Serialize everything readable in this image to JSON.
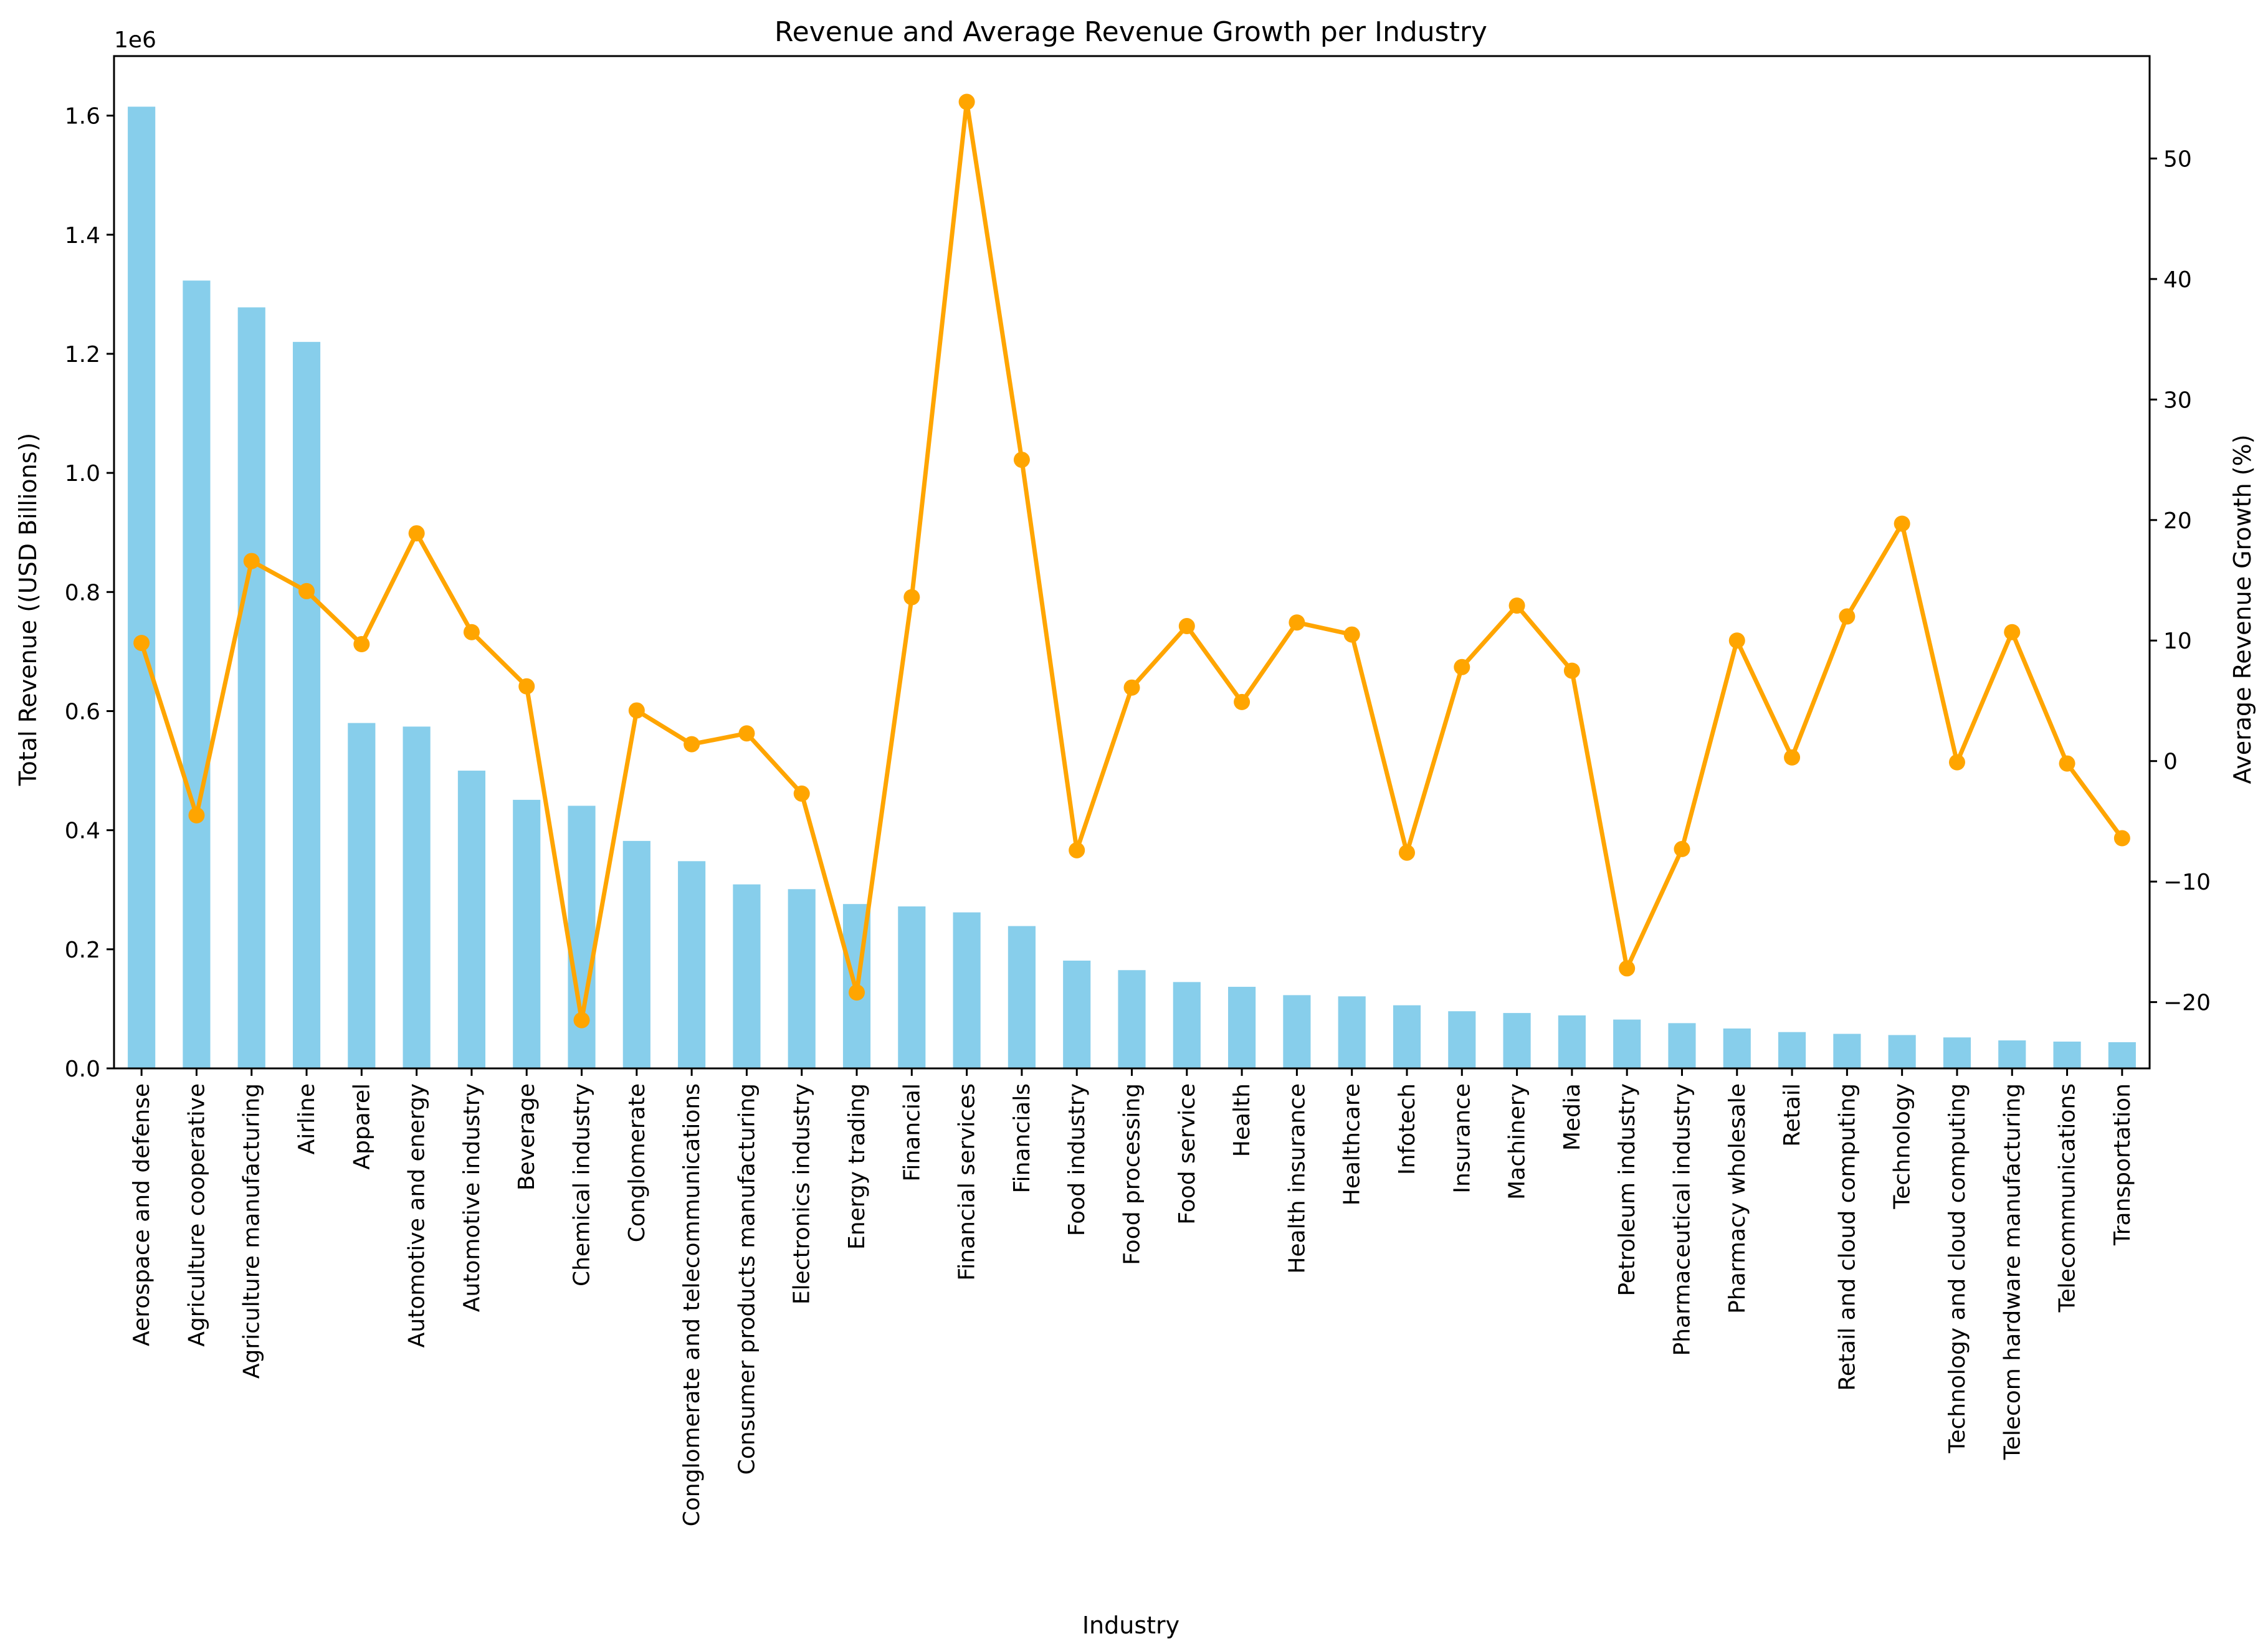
{
  "chart_data": {
    "type": "bar",
    "title": "Revenue and Average Revenue Growth per Industry",
    "xlabel": "Industry",
    "ylabel": "Total Revenue ((USD Billions))",
    "y2label": "Average Revenue Growth (%)",
    "y_offset_label": "1e6",
    "ylim": [
      0,
      1700000
    ],
    "y2lim": [
      -25.5,
      58.5
    ],
    "yticks": [
      0,
      200000,
      400000,
      600000,
      800000,
      1000000,
      1200000,
      1400000,
      1600000
    ],
    "ytick_labels": [
      "0.0",
      "0.2",
      "0.4",
      "0.6",
      "0.8",
      "1.0",
      "1.2",
      "1.4",
      "1.6"
    ],
    "y2ticks": [
      -20,
      -10,
      0,
      10,
      20,
      30,
      40,
      50
    ],
    "y2tick_labels": [
      "−20",
      "−10",
      "0",
      "10",
      "20",
      "30",
      "40",
      "50"
    ],
    "grid": false,
    "bar_color": "#87CEEB",
    "line_color": "#FFA500",
    "categories": [
      "Aerospace and defense",
      "Agriculture cooperative",
      "Agriculture manufacturing",
      "Airline",
      "Apparel",
      "Automotive and energy",
      "Automotive industry",
      "Beverage",
      "Chemical industry",
      "Conglomerate",
      "Conglomerate and telecommunications",
      "Consumer products manufacturing",
      "Electronics industry",
      "Energy trading",
      "Financial",
      "Financial services",
      "Financials",
      "Food industry",
      "Food processing",
      "Food service",
      "Health",
      "Health insurance",
      "Healthcare",
      "Infotech",
      "Insurance",
      "Machinery",
      "Media",
      "Petroleum industry",
      "Pharmaceutical industry",
      "Pharmacy wholesale",
      "Retail",
      "Retail and cloud computing",
      "Technology",
      "Technology and cloud computing",
      "Telecom hardware manufacturing",
      "Telecommunications",
      "Transportation"
    ],
    "series": [
      {
        "type": "bar",
        "axis": "left",
        "values": [
          1615000,
          1323000,
          1278000,
          1220000,
          580000,
          574000,
          500000,
          451000,
          441000,
          382000,
          348000,
          309000,
          301000,
          276000,
          272000,
          262000,
          239000,
          181000,
          165000,
          145000,
          137000,
          123000,
          121000,
          106000,
          96000,
          93000,
          89000,
          82000,
          76000,
          67000,
          61000,
          58000,
          56000,
          52000,
          47000,
          45000,
          44000
        ]
      },
      {
        "type": "line",
        "axis": "right",
        "values": [
          9.8,
          -4.5,
          16.6,
          14.1,
          9.7,
          18.9,
          10.7,
          6.2,
          -21.5,
          4.2,
          1.4,
          2.3,
          -2.7,
          -19.2,
          13.6,
          54.7,
          25.0,
          -7.4,
          6.1,
          11.2,
          4.9,
          11.5,
          10.5,
          -7.6,
          7.8,
          12.9,
          7.5,
          -17.2,
          -7.3,
          10.0,
          0.3,
          12.0,
          19.7,
          -0.1,
          10.7,
          -0.2,
          -6.4
        ]
      }
    ]
  }
}
